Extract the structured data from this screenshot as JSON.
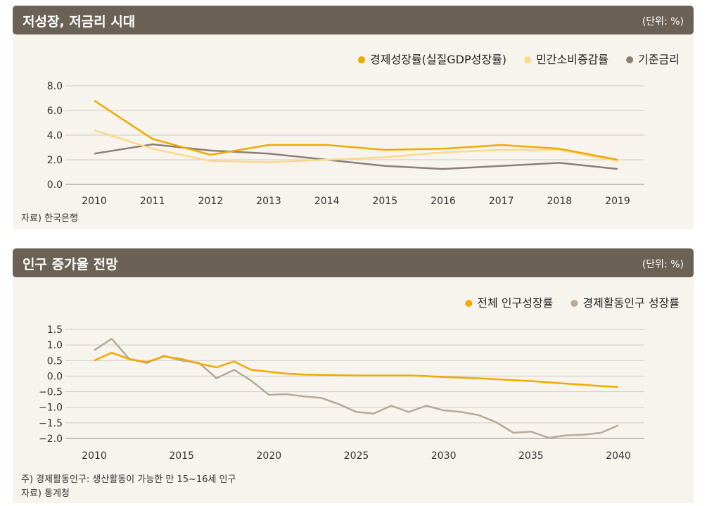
{
  "panel1": {
    "title": "저성장, 저금리 시대",
    "unit": "(단위: %)",
    "source": "자료) 한국은행"
  },
  "panel2": {
    "title": "인구 증가율 전망",
    "unit": "(단위: %)",
    "note": "주) 경제활동인구: 생산활동이 가능한 만 15~16세 인구",
    "source": "자료) 통계청"
  },
  "chart_data": [
    {
      "type": "line",
      "title": "저성장, 저금리 시대",
      "x": [
        2010,
        2011,
        2012,
        2013,
        2014,
        2015,
        2016,
        2017,
        2018,
        2019
      ],
      "ylim": [
        0,
        8
      ],
      "yticks": [
        "0.0",
        "2.0",
        "4.0",
        "6.0",
        "8.0"
      ],
      "grid": true,
      "legend": "top-right",
      "series": [
        {
          "name": "경제성장률(실질GDP성장률)",
          "color": "#f2a900",
          "values": [
            6.8,
            3.7,
            2.4,
            3.2,
            3.2,
            2.8,
            2.9,
            3.2,
            2.9,
            2.0
          ]
        },
        {
          "name": "민간소비증감률",
          "color": "#fbd98a",
          "values": [
            4.4,
            2.9,
            1.9,
            1.8,
            2.0,
            2.2,
            2.6,
            2.8,
            2.8,
            1.9
          ]
        },
        {
          "name": "기준금리",
          "color": "#8a7f74",
          "values": [
            2.5,
            3.25,
            2.75,
            2.5,
            2.0,
            1.5,
            1.25,
            1.5,
            1.75,
            1.25
          ]
        }
      ]
    },
    {
      "type": "line",
      "title": "인구 증가율 전망",
      "x": [
        2010,
        2011,
        2012,
        2013,
        2014,
        2015,
        2016,
        2017,
        2018,
        2019,
        2020,
        2021,
        2022,
        2023,
        2024,
        2025,
        2026,
        2027,
        2028,
        2029,
        2030,
        2031,
        2032,
        2033,
        2034,
        2035,
        2036,
        2037,
        2038,
        2039,
        2040
      ],
      "xticks": [
        2010,
        2015,
        2020,
        2025,
        2030,
        2035,
        2040
      ],
      "ylim": [
        -2.0,
        1.5
      ],
      "yticks": [
        "−2.0",
        "−1.5",
        "−1.0",
        "−0.5",
        "0.0",
        "0.5",
        "1.0",
        "1.5"
      ],
      "grid": true,
      "legend": "top-right",
      "series": [
        {
          "name": "전체 인구성장률",
          "color": "#f2a900",
          "values": [
            0.5,
            0.75,
            0.55,
            0.45,
            0.63,
            0.55,
            0.4,
            0.28,
            0.47,
            0.2,
            0.14,
            0.08,
            0.05,
            0.04,
            0.03,
            0.02,
            0.02,
            0.02,
            0.02,
            0.0,
            -0.03,
            -0.05,
            -0.07,
            -0.1,
            -0.13,
            -0.16,
            -0.2,
            -0.24,
            -0.28,
            -0.32,
            -0.35
          ]
        },
        {
          "name": "경제활동인구 성장률",
          "color": "#b5aa99",
          "values": [
            0.83,
            1.2,
            0.55,
            0.42,
            0.65,
            0.5,
            0.42,
            -0.07,
            0.2,
            -0.15,
            -0.6,
            -0.58,
            -0.65,
            -0.7,
            -0.9,
            -1.15,
            -1.2,
            -0.95,
            -1.15,
            -0.95,
            -1.1,
            -1.15,
            -1.25,
            -1.48,
            -1.82,
            -1.78,
            -1.98,
            -1.9,
            -1.88,
            -1.82,
            -1.58
          ]
        }
      ]
    }
  ]
}
